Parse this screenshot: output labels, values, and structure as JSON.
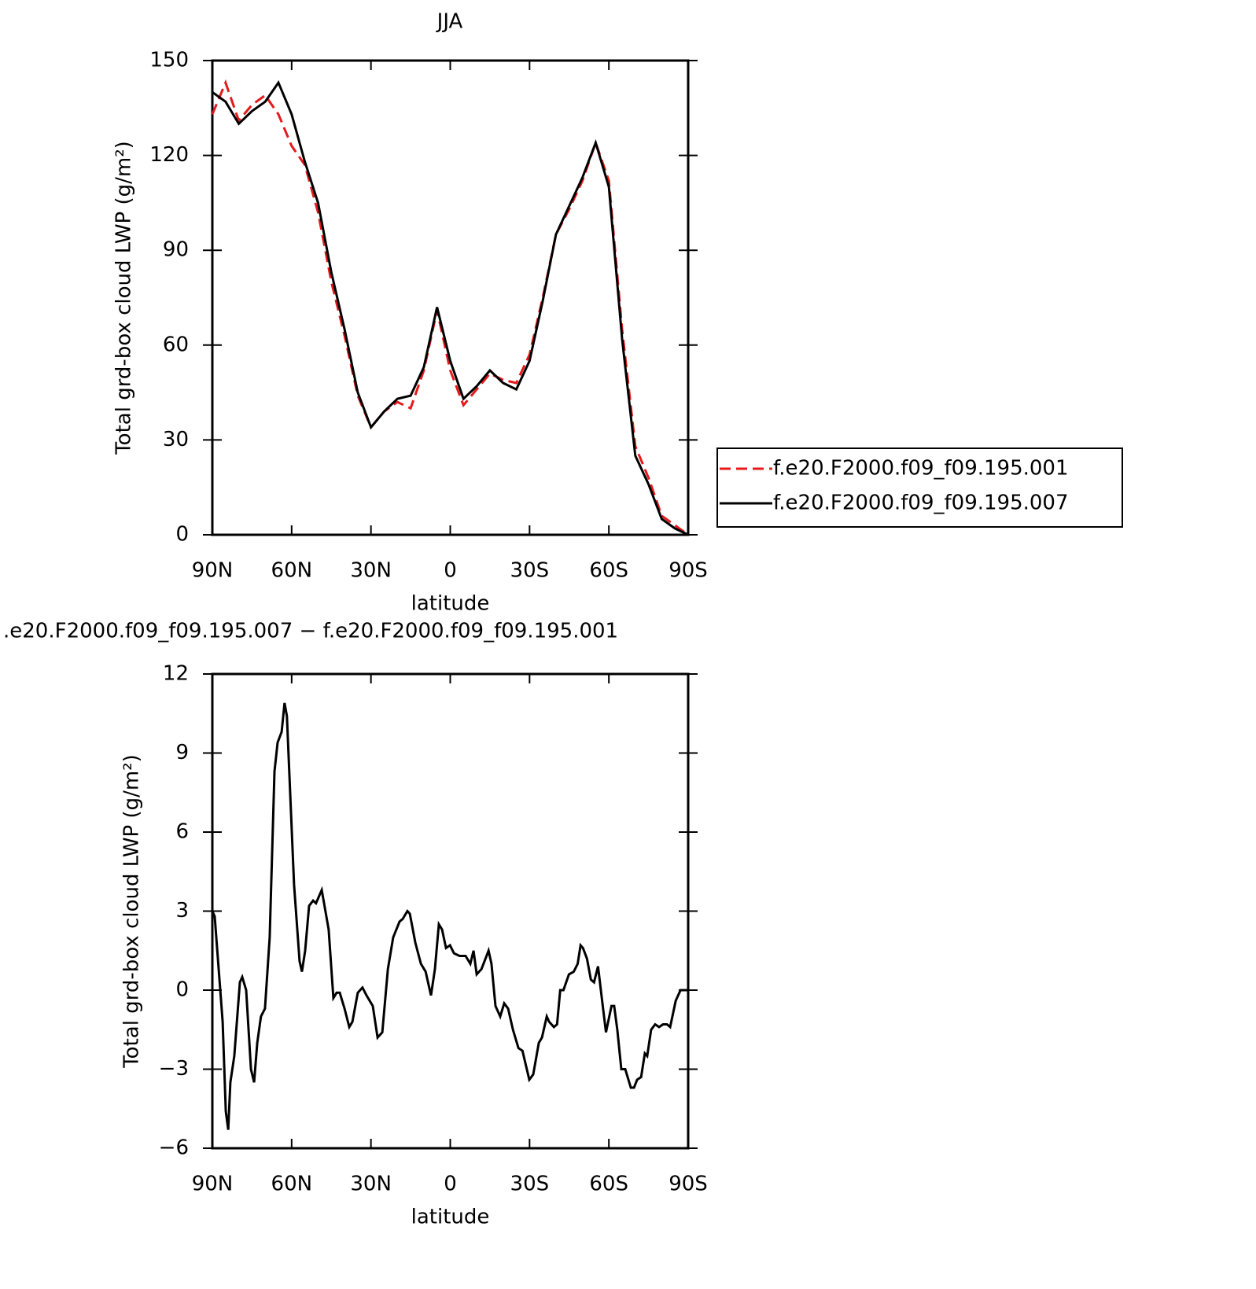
{
  "chart_data": [
    {
      "type": "line",
      "title": "JJA",
      "x_label": "latitude",
      "y_label": "Total grd-box cloud LWP (g/m²)",
      "x": [
        90,
        85,
        80,
        75,
        70,
        65,
        60,
        55,
        50,
        45,
        40,
        35,
        30,
        25,
        20,
        15,
        10,
        5,
        0,
        -5,
        -10,
        -15,
        -20,
        -25,
        -30,
        -35,
        -40,
        -45,
        -50,
        -55,
        -60,
        -65,
        -70,
        -75,
        -80,
        -85,
        -90
      ],
      "series": [
        {
          "name": "f.e20.F2000.f09_f09.195.001",
          "color": "#e41a1c",
          "style": "dashed",
          "values": [
            133,
            143,
            131,
            136,
            139,
            133,
            123,
            117,
            102,
            80,
            63,
            44,
            34,
            39,
            42,
            40,
            52,
            71,
            52,
            41,
            46,
            51,
            49,
            48,
            57,
            75,
            95,
            103,
            112,
            124,
            112,
            65,
            28,
            18,
            6,
            3,
            0
          ]
        },
        {
          "name": "f.e20.F2000.f09_f09.195.007",
          "color": "#000000",
          "style": "solid",
          "values": [
            140,
            137,
            130,
            134,
            137,
            143,
            133,
            118,
            105,
            83,
            65,
            45,
            34,
            39,
            43,
            44,
            53,
            72,
            55,
            43,
            47,
            52,
            48,
            46,
            55,
            74,
            95,
            104,
            113,
            124,
            110,
            62,
            25,
            16,
            5,
            2,
            0
          ]
        }
      ],
      "xlim": [
        90,
        -90
      ],
      "xticks": [
        {
          "value": 90,
          "label": "90N"
        },
        {
          "value": 60,
          "label": "60N"
        },
        {
          "value": 30,
          "label": "30N"
        },
        0,
        {
          "value": -30,
          "label": "30S"
        },
        {
          "value": -60,
          "label": "60S"
        },
        {
          "value": -90,
          "label": "90S"
        }
      ],
      "ylim": [
        0,
        150
      ],
      "yticks": [
        0,
        30,
        60,
        90,
        120,
        150
      ],
      "legend": "right"
    },
    {
      "type": "line",
      "title": ".e20.F2000.f09_f09.195.007 − f.e20.F2000.f09_f09.195.001",
      "x_label": "latitude",
      "y_label": "Total grd-box cloud LWP (g/m²)",
      "x": [
        90.0,
        89.1,
        86.1,
        84.9,
        84.0,
        83.2,
        81.7,
        79.6,
        78.7,
        77.2,
        75.4,
        74.2,
        73.0,
        71.6,
        70.1,
        68.3,
        66.5,
        65.3,
        63.8,
        62.7,
        61.8,
        59.1,
        57.0,
        56.1,
        54.9,
        53.4,
        51.9,
        50.8,
        48.6,
        46.0,
        44.2,
        43.0,
        41.8,
        40.0,
        38.2,
        37.0,
        35.0,
        33.2,
        31.7,
        29.3,
        27.5,
        25.7,
        23.6,
        21.6,
        19.2,
        18.0,
        16.2,
        15.3,
        13.2,
        11.1,
        9.3,
        7.3,
        5.8,
        4.3,
        3.1,
        1.6,
        0.1,
        -1.4,
        -3.5,
        -5.8,
        -7.6,
        -8.8,
        -10.0,
        -11.8,
        -14.5,
        -15.6,
        -17.1,
        -18.9,
        -20.4,
        -21.9,
        -23.7,
        -25.8,
        -27.3,
        -29.9,
        -31.4,
        -33.5,
        -34.7,
        -36.5,
        -37.4,
        -39.2,
        -40.4,
        -41.6,
        -42.8,
        -44.9,
        -46.7,
        -48.2,
        -49.3,
        -50.2,
        -51.7,
        -53.2,
        -54.4,
        -55.9,
        -57.7,
        -58.9,
        -61.0,
        -62.0,
        -63.2,
        -64.7,
        -66.2,
        -68.3,
        -69.5,
        -70.7,
        -72.2,
        -73.6,
        -74.5,
        -76.0,
        -77.5,
        -79.0,
        -80.5,
        -82.0,
        -83.2,
        -85.3,
        -87.1,
        -90.0
      ],
      "values": [
        3.0,
        2.8,
        -1.2,
        -4.6,
        -5.3,
        -3.5,
        -2.5,
        0.3,
        0.5,
        0,
        -3.0,
        -3.5,
        -2.0,
        -1.0,
        -0.7,
        2,
        8.3,
        9.4,
        9.8,
        10.9,
        10.4,
        4,
        1.1,
        0.7,
        1.5,
        3.2,
        3.4,
        3.3,
        3.8,
        2.3,
        -0.3,
        -0.1,
        -0.1,
        -0.7,
        -1.4,
        -1.2,
        -0.1,
        0.1,
        -0.2,
        -0.6,
        -1.8,
        -1.6,
        0.8,
        2.0,
        2.6,
        2.7,
        3.0,
        2.9,
        1.8,
        1.0,
        0.7,
        -0.2,
        0.8,
        2.5,
        2.3,
        1.6,
        1.7,
        1.4,
        1.3,
        1.3,
        1.0,
        1.5,
        0.6,
        0.8,
        1.5,
        1.0,
        -0.6,
        -1.0,
        -0.5,
        -0.7,
        -1.5,
        -2.2,
        -2.3,
        -3.4,
        -3.2,
        -2.0,
        -1.8,
        -1.0,
        -1.2,
        -1.4,
        -1.3,
        0,
        0,
        0.6,
        0.7,
        1.0,
        1.7,
        1.6,
        1.2,
        0.4,
        0.3,
        0.9,
        -0.6,
        -1.6,
        -0.6,
        -0.6,
        -1.5,
        -3.0,
        -3.0,
        -3.7,
        -3.7,
        -3.4,
        -3.3,
        -2.4,
        -2.5,
        -1.5,
        -1.3,
        -1.4,
        -1.3,
        -1.3,
        -1.4,
        -0.4,
        0,
        0
      ],
      "color": "#000000",
      "xlim": [
        90,
        -90
      ],
      "xticks": [
        {
          "value": 90,
          "label": "90N"
        },
        {
          "value": 60,
          "label": "60N"
        },
        {
          "value": 30,
          "label": "30N"
        },
        0,
        {
          "value": -30,
          "label": "30S"
        },
        {
          "value": -60,
          "label": "60S"
        },
        {
          "value": -90,
          "label": "90S"
        }
      ],
      "ylim": [
        -6,
        12
      ],
      "yticks": [
        {
          "value": -6,
          "label": "−6"
        },
        {
          "value": -3,
          "label": "−3"
        },
        0,
        3,
        6,
        9,
        12
      ]
    }
  ]
}
